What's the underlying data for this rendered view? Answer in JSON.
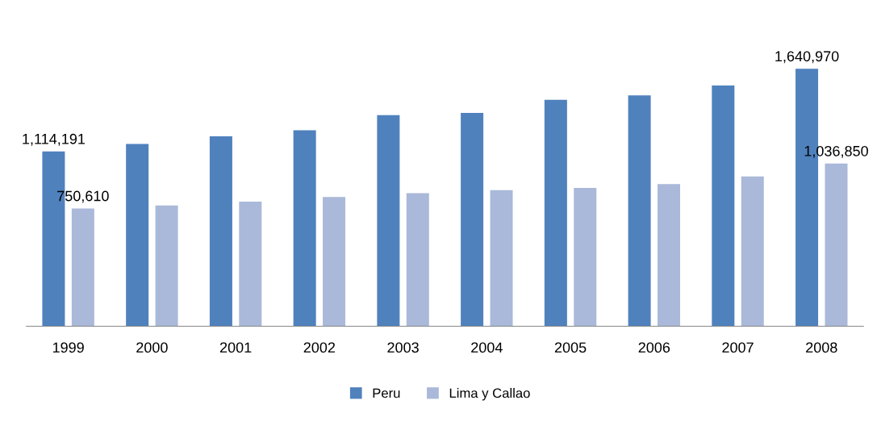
{
  "chart_data": {
    "type": "bar",
    "categories": [
      "1999",
      "2000",
      "2001",
      "2002",
      "2003",
      "2004",
      "2005",
      "2006",
      "2007",
      "2008"
    ],
    "series": [
      {
        "name": "Peru",
        "color": "#4f81bd",
        "values": [
          1114191,
          1162000,
          1211000,
          1249000,
          1346000,
          1360000,
          1443000,
          1472000,
          1534000,
          1640970
        ],
        "value_labels": [
          "1,114,191",
          null,
          null,
          null,
          null,
          null,
          null,
          null,
          null,
          "1,640,970"
        ]
      },
      {
        "name": "Lima y Callao",
        "color": "#aab9d9",
        "values": [
          750610,
          770000,
          795000,
          824000,
          848000,
          867000,
          882000,
          906000,
          955000,
          1036850
        ],
        "value_labels": [
          "750,610",
          null,
          null,
          null,
          null,
          null,
          null,
          null,
          null,
          "1,036,850"
        ]
      }
    ],
    "tick_labels": "x",
    "grid": false,
    "legend": "bottom"
  }
}
